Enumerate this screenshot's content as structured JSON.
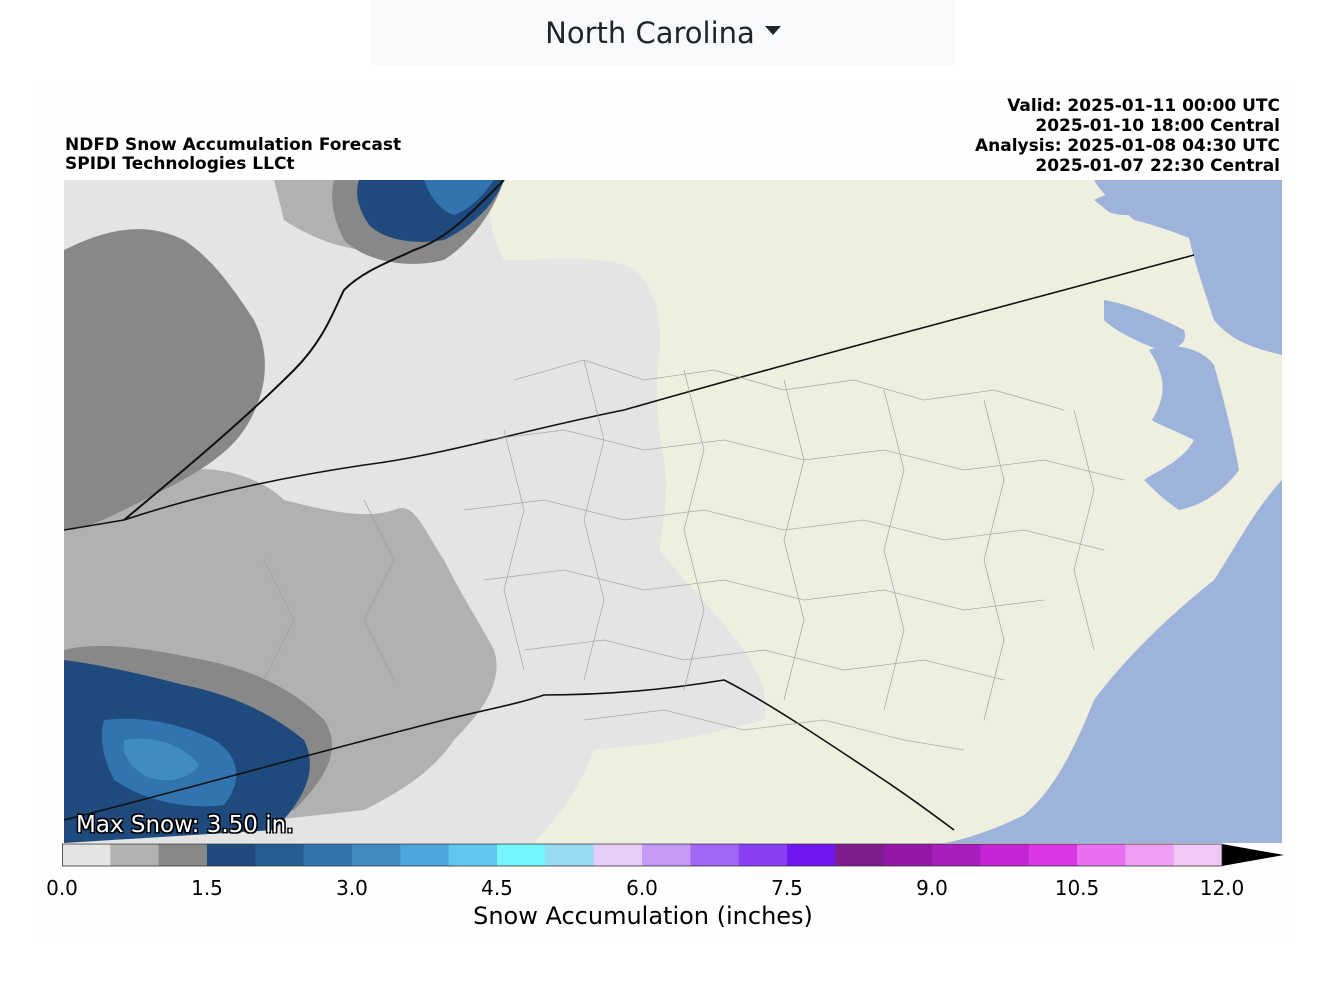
{
  "header": {
    "region_selected": "North Carolina",
    "dropdown_icon": "caret-down-icon"
  },
  "figure": {
    "title_left": [
      "NDFD Snow Accumulation Forecast",
      "SPIDI Technologies LLCt"
    ],
    "title_right": [
      "Valid: 2025-01-11 00:00 UTC",
      "2025-01-10 18:00 Central",
      "Analysis: 2025-01-08 04:30 UTC",
      "2025-01-07 22:30 Central"
    ],
    "annotation": "Max Snow: 3.50 in.",
    "colors": {
      "ocean": "#9db3dc",
      "land": "#efefe0",
      "snow_light": "#e4e4e4",
      "snow_medium": "#b1b1b1",
      "snow_heavy": "#888888",
      "snow_blue": "#2f5f98"
    }
  },
  "colorbar": {
    "label": "Snow Accumulation (inches)",
    "min": 0,
    "max": 12,
    "extend": "max",
    "bins": [
      {
        "from": 0.0,
        "to": 0.5,
        "color": "#e4e4e4"
      },
      {
        "from": 0.5,
        "to": 1.0,
        "color": "#b1b1b1"
      },
      {
        "from": 1.0,
        "to": 1.5,
        "color": "#888888"
      },
      {
        "from": 1.5,
        "to": 2.0,
        "color": "#1f4a7e"
      },
      {
        "from": 2.0,
        "to": 2.5,
        "color": "#285d94"
      },
      {
        "from": 2.5,
        "to": 3.0,
        "color": "#3274b0"
      },
      {
        "from": 3.0,
        "to": 3.5,
        "color": "#3f8cc4"
      },
      {
        "from": 3.5,
        "to": 4.0,
        "color": "#4da6dc"
      },
      {
        "from": 4.0,
        "to": 4.5,
        "color": "#5ec8f0"
      },
      {
        "from": 4.5,
        "to": 5.0,
        "color": "#75f5fc"
      },
      {
        "from": 5.0,
        "to": 5.5,
        "color": "#96dbf2"
      },
      {
        "from": 5.5,
        "to": 6.0,
        "color": "#e6ccf8"
      },
      {
        "from": 6.0,
        "to": 6.5,
        "color": "#c599f6"
      },
      {
        "from": 6.5,
        "to": 7.0,
        "color": "#a165f3"
      },
      {
        "from": 7.0,
        "to": 7.5,
        "color": "#8a3ff2"
      },
      {
        "from": 7.5,
        "to": 8.0,
        "color": "#7016f0"
      },
      {
        "from": 8.0,
        "to": 8.5,
        "color": "#7e1c8e"
      },
      {
        "from": 8.5,
        "to": 9.0,
        "color": "#9418a8"
      },
      {
        "from": 9.0,
        "to": 9.5,
        "color": "#a91cbd"
      },
      {
        "from": 9.5,
        "to": 10.0,
        "color": "#c325d4"
      },
      {
        "from": 10.0,
        "to": 10.5,
        "color": "#da36e6"
      },
      {
        "from": 10.5,
        "to": 11.0,
        "color": "#ea6ef0"
      },
      {
        "from": 11.0,
        "to": 11.5,
        "color": "#ee9ef3"
      },
      {
        "from": 11.5,
        "to": 12.0,
        "color": "#f0c8f5"
      }
    ],
    "ticks": [
      "0.0",
      "1.5",
      "3.0",
      "4.5",
      "6.0",
      "7.5",
      "9.0",
      "10.5",
      "12.0"
    ],
    "tick_values": [
      0,
      1.5,
      3,
      4.5,
      6,
      7.5,
      9,
      10.5,
      12
    ]
  }
}
